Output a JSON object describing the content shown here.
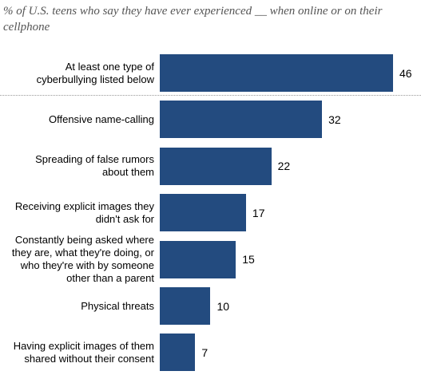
{
  "chart_data": {
    "type": "bar",
    "orientation": "horizontal",
    "title": "% of U.S. teens who say they have ever experienced __ when online or on their cellphone",
    "categories": [
      "At least one type of cyberbullying listed below",
      "Offensive name-calling",
      "Spreading of false rumors about them",
      "Receiving explicit images they didn't ask for",
      "Constantly being asked where they are, what they're doing, or who they're with by someone other than a parent",
      "Physical threats",
      "Having explicit images of them shared without their consent"
    ],
    "values": [
      46,
      32,
      22,
      17,
      15,
      10,
      7
    ],
    "color": "#234b7f"
  }
}
